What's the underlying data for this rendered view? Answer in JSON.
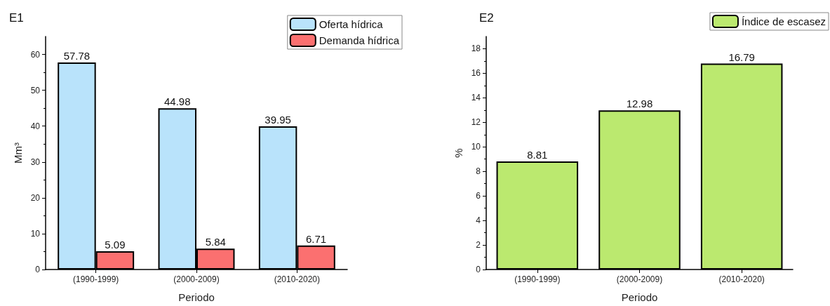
{
  "chart_data": [
    {
      "type": "bar",
      "title": "E1",
      "xlabel": "Periodo",
      "ylabel": "Mm³",
      "categories": [
        "(1990-1999)",
        "(2000-2009)",
        "(2010-2020)"
      ],
      "series": [
        {
          "name": "Oferta hídrica",
          "color": "#b9e3fb",
          "values": [
            57.78,
            44.98,
            39.95
          ]
        },
        {
          "name": "Demanda hídrica",
          "color": "#fb7070",
          "values": [
            5.09,
            5.84,
            6.71
          ]
        }
      ],
      "ylim": [
        0,
        65
      ],
      "yticks": [
        0,
        10,
        20,
        30,
        40,
        50,
        60
      ],
      "data_labels": true,
      "legend": "top right",
      "grid": false
    },
    {
      "type": "bar",
      "title": "E2",
      "xlabel": "Periodo",
      "ylabel": "%",
      "categories": [
        "(1990-1999)",
        "(2000-2009)",
        "(2010-2020)"
      ],
      "series": [
        {
          "name": "Índice de escasez",
          "color": "#bbe96f",
          "values": [
            8.81,
            12.98,
            16.79
          ]
        }
      ],
      "ylim": [
        0,
        19
      ],
      "yticks": [
        0,
        2,
        4,
        6,
        8,
        10,
        12,
        14,
        16,
        18
      ],
      "data_labels": true,
      "legend": "top right",
      "grid": false
    }
  ]
}
